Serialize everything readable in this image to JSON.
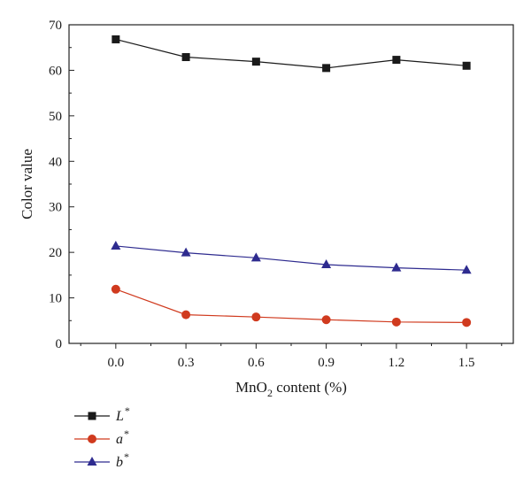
{
  "chart_data": {
    "type": "line",
    "xlabel_main": "MnO",
    "xlabel_sub": "2",
    "xlabel_rest": " content (%)",
    "ylabel": "Color value",
    "xlim": [
      -0.2,
      1.7
    ],
    "ylim": [
      0,
      70
    ],
    "x": [
      0.0,
      0.3,
      0.6,
      0.9,
      1.2,
      1.5
    ],
    "x_tick_labels": [
      "0.0",
      "0.3",
      "0.6",
      "0.9",
      "1.2",
      "1.5"
    ],
    "y_ticks": [
      0,
      10,
      20,
      30,
      40,
      50,
      60,
      70
    ],
    "y_tick_labels": [
      "0",
      "10",
      "20",
      "30",
      "40",
      "50",
      "60",
      "70"
    ],
    "grid": false,
    "legend_position": "below-left",
    "series": [
      {
        "name": "L",
        "superscript": "*",
        "marker": "square",
        "color": "#1a1a1a",
        "values": [
          66.8,
          62.9,
          61.9,
          60.5,
          62.3,
          61.0
        ]
      },
      {
        "name": "a",
        "superscript": "*",
        "marker": "circle",
        "color": "#d03a1e",
        "values": [
          11.9,
          6.3,
          5.8,
          5.2,
          4.7,
          4.6
        ]
      },
      {
        "name": "b",
        "superscript": "*",
        "marker": "triangle",
        "color": "#2e2b8f",
        "values": [
          21.4,
          19.9,
          18.8,
          17.3,
          16.6,
          16.1
        ]
      }
    ]
  }
}
